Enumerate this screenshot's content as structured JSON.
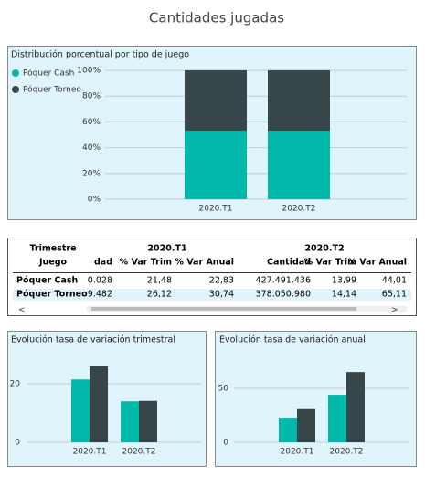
{
  "title": "Cantidades jugadas",
  "chart_data": [
    {
      "type": "bar",
      "stacked": true,
      "title": "Distribución porcentual por tipo de juego",
      "categories": [
        "2020.T1",
        "2020.T2"
      ],
      "series": [
        {
          "name": "Póquer Cash",
          "color": "#01b8aa",
          "values": [
            53,
            53
          ]
        },
        {
          "name": "Póquer Torneo",
          "color": "#374649",
          "values": [
            47,
            47
          ]
        }
      ],
      "ylim": [
        0,
        100
      ],
      "yticks": [
        {
          "value": 0,
          "label": "0%"
        },
        {
          "value": 20,
          "label": "20%"
        },
        {
          "value": 40,
          "label": "40%"
        },
        {
          "value": 60,
          "label": "60%"
        },
        {
          "value": 80,
          "label": "80%"
        },
        {
          "value": 100,
          "label": "100%"
        }
      ],
      "grid": true,
      "legend": "top-left"
    },
    {
      "type": "bar",
      "stacked": false,
      "title": "Evolución tasa de variación trimestral",
      "categories": [
        "2020.T1",
        "2020.T2"
      ],
      "series": [
        {
          "color": "#01b8aa",
          "values": [
            21.48,
            13.99
          ]
        },
        {
          "color": "#374649",
          "values": [
            26.12,
            14.14
          ]
        }
      ],
      "ylim": [
        0,
        30
      ],
      "yticks": [
        0,
        20
      ],
      "grid": true
    },
    {
      "type": "bar",
      "stacked": false,
      "title": "Evolución tasa de variación anual",
      "categories": [
        "2020.T1",
        "2020.T2"
      ],
      "series": [
        {
          "color": "#01b8aa",
          "values": [
            22.83,
            44.01
          ]
        },
        {
          "color": "#374649",
          "values": [
            30.74,
            65.11
          ]
        }
      ],
      "ylim": [
        0,
        75
      ],
      "yticks": [
        0,
        50
      ],
      "grid": true
    }
  ],
  "table": {
    "header1": [
      "Trimestre",
      "2020.T1",
      "2020.T2"
    ],
    "header2": [
      "Juego",
      "dad",
      "% Var Trim",
      "% Var Anual",
      "Cantidad",
      "% Var Trim",
      "% Var Anual"
    ],
    "rows": [
      [
        "Póquer Cash",
        "0.028",
        "21,48",
        "22,83",
        "427.491.436",
        "13,99",
        "44,01"
      ],
      [
        "Póquer Torneo",
        "9.482",
        "26,12",
        "30,74",
        "378.050.980",
        "14,14",
        "65,11"
      ]
    ]
  }
}
